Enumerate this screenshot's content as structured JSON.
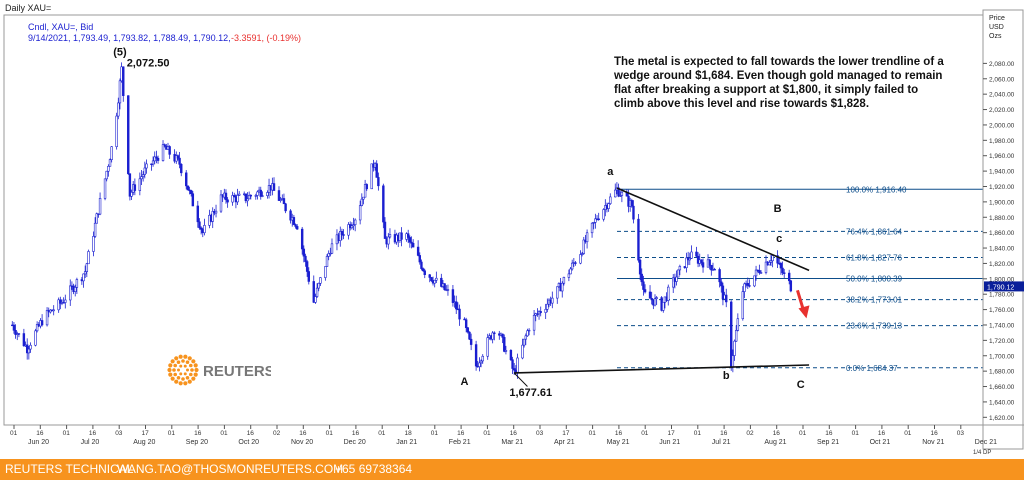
{
  "header": {
    "title": "Daily XAU=",
    "legend_line": "Cndl, XAU=, Bid",
    "ohlc_line": "9/14/2021, 1,793.49, 1,793.82, 1,788.49, 1,790.12,",
    "change_line": "-3.3591, (-0.19%)"
  },
  "price_axis": {
    "title_1": "Price",
    "title_2": "USD",
    "title_3": "Ozs",
    "last_price": "1,790.12",
    "zoom": "1/4 DP"
  },
  "note": "The metal is expected to fall towards the lower trendline of a wedge around $1,684. Even though gold managed to remain flat after breaking a support at $1,800, it simply failed to climb above this level and rise towards $1,828.",
  "footer": {
    "left": "REUTERS TECHNICAL",
    "email": "WANG.TAO@THOSMONREUTERS.COM",
    "phone": "+65 69738364"
  },
  "logo": {
    "text": "REUTERS"
  },
  "colors": {
    "candle": "#1a1fd0",
    "fib_line": "#0d4d8a",
    "fib_text": "#0d4d8a",
    "arrow": "#e8312f",
    "footer": "#f7931e"
  },
  "chart_data": {
    "type": "candlestick",
    "ylim": [
      1610,
      2100
    ],
    "y_ticks": [
      1620,
      1640,
      1660,
      1680,
      1700,
      1720,
      1740,
      1760,
      1780,
      1800,
      1820,
      1840,
      1860,
      1880,
      1900,
      1920,
      1940,
      1960,
      1980,
      2000,
      2020,
      2040,
      2060,
      2080
    ],
    "y_tick_labels": [
      "1,620.00",
      "1,640.00",
      "1,660.00",
      "1,680.00",
      "1,700.00",
      "1,720.00",
      "1,740.00",
      "1,760.00",
      "1,780.00",
      "1,800.00",
      "1,820.00",
      "1,840.00",
      "1,860.00",
      "1,880.00",
      "1,900.00",
      "1,920.00",
      "1,940.00",
      "1,960.00",
      "1,980.00",
      "2,000.00",
      "2,020.00",
      "2,040.00",
      "2,060.00",
      "2,080.00"
    ],
    "x_ticks_day": [
      "01",
      "16",
      "01",
      "16",
      "03",
      "17",
      "01",
      "16",
      "01",
      "16",
      "02",
      "16",
      "01",
      "16",
      "01",
      "18",
      "01",
      "16",
      "01",
      "16",
      "03",
      "17",
      "01",
      "16",
      "01",
      "17",
      "01",
      "16",
      "02",
      "16",
      "01",
      "16",
      "01",
      "16",
      "01",
      "16",
      "03"
    ],
    "x_ticks_month": [
      "Jun 20",
      "Jul 20",
      "Aug 20",
      "Sep 20",
      "Oct 20",
      "Nov 20",
      "Dec 20",
      "Jan 21",
      "Feb 21",
      "Mar 21",
      "Apr 21",
      "May 21",
      "Jun 21",
      "Jul 21",
      "Aug 21",
      "Sep 21",
      "Oct 21",
      "Nov 21",
      "Dec 21"
    ],
    "path_points": [
      [
        "2020-06-01",
        1740
      ],
      [
        "2020-06-10",
        1710
      ],
      [
        "2020-06-20",
        1750
      ],
      [
        "2020-07-01",
        1770
      ],
      [
        "2020-07-15",
        1810
      ],
      [
        "2020-07-24",
        1900
      ],
      [
        "2020-08-01",
        1980
      ],
      [
        "2020-08-06",
        2072.5
      ],
      [
        "2020-08-11",
        1910
      ],
      [
        "2020-08-20",
        1940
      ],
      [
        "2020-09-01",
        1970
      ],
      [
        "2020-09-10",
        1950
      ],
      [
        "2020-09-24",
        1860
      ],
      [
        "2020-10-05",
        1905
      ],
      [
        "2020-10-20",
        1905
      ],
      [
        "2020-11-04",
        1920
      ],
      [
        "2020-11-20",
        1870
      ],
      [
        "2020-11-30",
        1770
      ],
      [
        "2020-12-10",
        1840
      ],
      [
        "2020-12-25",
        1880
      ],
      [
        "2021-01-06",
        1955
      ],
      [
        "2021-01-12",
        1850
      ],
      [
        "2021-01-25",
        1855
      ],
      [
        "2021-02-05",
        1810
      ],
      [
        "2021-02-20",
        1780
      ],
      [
        "2021-03-01",
        1740
      ],
      [
        "2021-03-08",
        1687
      ],
      [
        "2021-03-20",
        1740
      ],
      [
        "2021-03-31",
        1677.61
      ],
      [
        "2021-04-10",
        1745
      ],
      [
        "2021-04-25",
        1780
      ],
      [
        "2021-05-10",
        1835
      ],
      [
        "2021-05-20",
        1880
      ],
      [
        "2021-06-01",
        1916.4
      ],
      [
        "2021-06-10",
        1895
      ],
      [
        "2021-06-17",
        1780
      ],
      [
        "2021-06-28",
        1765
      ],
      [
        "2021-07-06",
        1800
      ],
      [
        "2021-07-15",
        1830
      ],
      [
        "2021-07-30",
        1815
      ],
      [
        "2021-08-06",
        1765
      ],
      [
        "2021-08-09",
        1690
      ],
      [
        "2021-08-16",
        1785
      ],
      [
        "2021-08-27",
        1815
      ],
      [
        "2021-09-03",
        1830
      ],
      [
        "2021-09-14",
        1790.12
      ]
    ],
    "labels": [
      {
        "text": "(5)",
        "date": "2020-08-05",
        "price": 2090
      },
      {
        "text": "2,072.50",
        "date": "2020-08-22",
        "price": 2076
      },
      {
        "text": "a",
        "date": "2021-05-28",
        "price": 1935
      },
      {
        "text": "B",
        "date": "2021-09-06",
        "price": 1887
      },
      {
        "text": "c",
        "date": "2021-09-07",
        "price": 1848
      },
      {
        "text": "A",
        "date": "2021-03-01",
        "price": 1662
      },
      {
        "text": "1,677.61",
        "date": "2021-04-10",
        "price": 1648
      },
      {
        "text": "b",
        "date": "2021-08-06",
        "price": 1670
      },
      {
        "text": "C",
        "date": "2021-09-20",
        "price": 1658
      }
    ],
    "fibonacci": [
      {
        "label": "100.0%",
        "value": "1,916.40",
        "price": 1916.4
      },
      {
        "label": "76.4%",
        "value": "1,861.64",
        "price": 1861.64
      },
      {
        "label": "61.8%",
        "value": "1,827.76",
        "price": 1827.76
      },
      {
        "label": "50.0%",
        "value": "1,800.39",
        "price": 1800.39
      },
      {
        "label": "38.2%",
        "value": "1,773.01",
        "price": 1773.01
      },
      {
        "label": "23.6%",
        "value": "1,739.13",
        "price": 1739.13
      },
      {
        "label": "0.0%",
        "value": "1,684.37",
        "price": 1684.37
      }
    ],
    "trendlines": [
      {
        "from": [
          "2021-06-01",
          1918
        ],
        "to": [
          "2021-09-25",
          1811
        ]
      },
      {
        "from": [
          "2021-03-31",
          1677.61
        ],
        "to": [
          "2021-09-25",
          1688
        ]
      }
    ],
    "date_range": [
      "2020-05-27",
      "2022-01-08"
    ]
  }
}
